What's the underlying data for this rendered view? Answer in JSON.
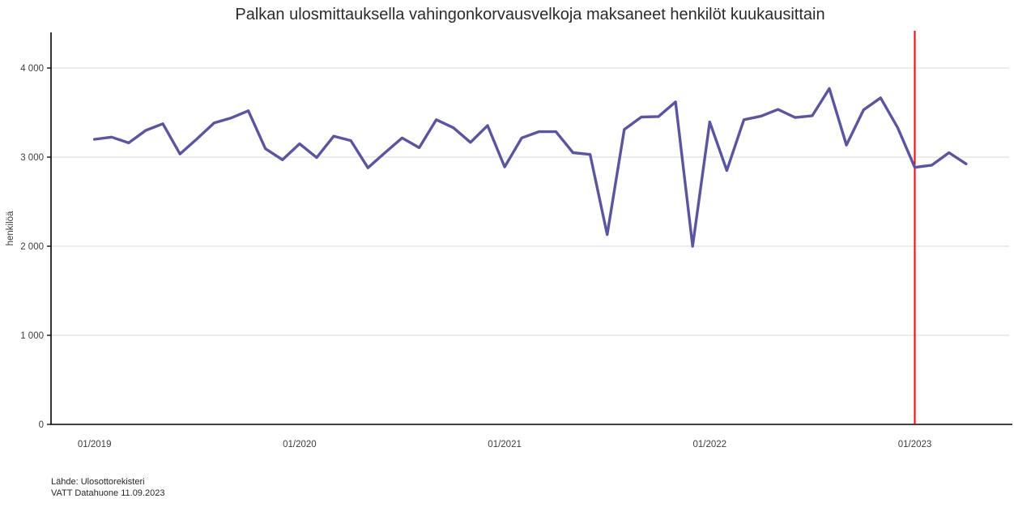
{
  "chart_data": {
    "type": "line",
    "title": "Palkan ulosmittauksella vahingonkorvausvelkoja maksaneet henkilöt kuukausittain",
    "xlabel": "",
    "ylabel": "henkilöä",
    "ylim": [
      0,
      4400
    ],
    "grid": true,
    "legend": "none",
    "colors": {
      "grid": "#d9d9d9",
      "axis": "#000000"
    },
    "y_ticks": [
      {
        "value": 0,
        "label": "0"
      },
      {
        "value": 1000,
        "label": "1 000"
      },
      {
        "value": 2000,
        "label": "2 000"
      },
      {
        "value": 3000,
        "label": "3 000"
      },
      {
        "value": 4000,
        "label": "4 000"
      }
    ],
    "x_ticks": [
      {
        "index": 0,
        "label": "01/2019"
      },
      {
        "index": 12,
        "label": "01/2020"
      },
      {
        "index": 24,
        "label": "01/2021"
      },
      {
        "index": 36,
        "label": "01/2022"
      },
      {
        "index": 48,
        "label": "01/2023"
      }
    ],
    "x": [
      "01/2019",
      "02/2019",
      "03/2019",
      "04/2019",
      "05/2019",
      "06/2019",
      "07/2019",
      "08/2019",
      "09/2019",
      "10/2019",
      "11/2019",
      "12/2019",
      "01/2020",
      "02/2020",
      "03/2020",
      "04/2020",
      "05/2020",
      "06/2020",
      "07/2020",
      "08/2020",
      "09/2020",
      "10/2020",
      "11/2020",
      "12/2020",
      "01/2021",
      "02/2021",
      "03/2021",
      "04/2021",
      "05/2021",
      "06/2021",
      "07/2021",
      "08/2021",
      "09/2021",
      "10/2021",
      "11/2021",
      "12/2021",
      "01/2022",
      "02/2022",
      "03/2022",
      "04/2022",
      "05/2022",
      "06/2022",
      "07/2022",
      "08/2022",
      "09/2022",
      "10/2022",
      "11/2022",
      "12/2022",
      "01/2023",
      "02/2023",
      "03/2023",
      "04/2023"
    ],
    "series": [
      {
        "name": "henkilöä",
        "color": "#5b54a4",
        "values": [
          3200,
          3225,
          3160,
          3300,
          3375,
          3035,
          3205,
          3385,
          3440,
          3520,
          3095,
          2970,
          3150,
          2995,
          3235,
          3185,
          2880,
          3050,
          3215,
          3105,
          3420,
          3330,
          3165,
          3355,
          2890,
          3215,
          3285,
          3285,
          3050,
          3030,
          2130,
          3310,
          3450,
          3455,
          3620,
          2000,
          3395,
          2850,
          3420,
          3460,
          3535,
          3445,
          3465,
          3770,
          3135,
          3530,
          3665,
          3330,
          2885,
          2910,
          3050,
          2925
        ]
      }
    ],
    "reference_line": {
      "x_label": "01/2023",
      "x_index": 48,
      "color": "#ff0000"
    }
  },
  "source": {
    "line1": "Lähde: Ulosottorekisteri",
    "line2": "VATT Datahuone 11.09.2023"
  }
}
